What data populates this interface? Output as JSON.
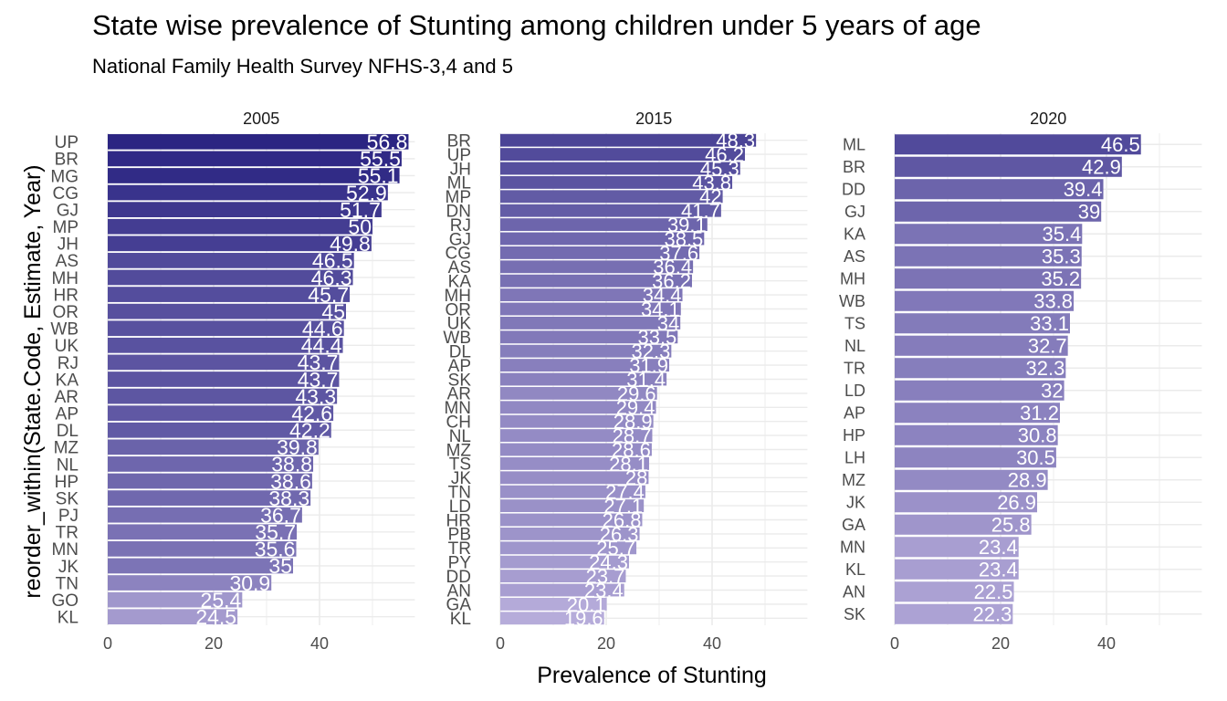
{
  "title": "State wise prevalence of Stunting among children under 5 years of age",
  "subtitle": "National Family Health Survey NFHS-3,4 and 5",
  "colors": {
    "bar_dark": "#2a2482",
    "bar_light": "#b6acda",
    "grid": "#ebebeb",
    "text": "#4d4d4d",
    "value_label": "#ffffff"
  },
  "chart_data": {
    "type": "bar",
    "orientation": "horizontal",
    "faceted": true,
    "xlabel": "Prevalence of Stunting",
    "ylabel": "reorder_within(State.Code, Estimate, Year)",
    "xlim": [
      0,
      58
    ],
    "x_ticks": [
      0,
      20,
      40
    ],
    "grid": true,
    "panels": [
      {
        "label": "2005",
        "categories": [
          "UP",
          "BR",
          "MG",
          "CG",
          "GJ",
          "MP",
          "JH",
          "AS",
          "MH",
          "HR",
          "OR",
          "WB",
          "UK",
          "RJ",
          "KA",
          "AR",
          "AP",
          "DL",
          "MZ",
          "NL",
          "HP",
          "SK",
          "PJ",
          "TR",
          "MN",
          "JK",
          "TN",
          "GO",
          "KL"
        ],
        "values": [
          56.8,
          55.5,
          55.1,
          52.9,
          51.7,
          50,
          49.8,
          46.5,
          46.3,
          45.7,
          45,
          44.6,
          44.4,
          43.7,
          43.7,
          43.3,
          42.6,
          42.2,
          39.8,
          38.8,
          38.6,
          38.3,
          36.7,
          35.7,
          35.6,
          35,
          30.9,
          25.4,
          24.5
        ],
        "value_labels": [
          "56.8",
          "55.5",
          "55.1",
          "52.9",
          "51.7",
          "50",
          "49.8",
          "46.5",
          "46.3",
          "45.7",
          "45",
          "44.6",
          "44.4",
          "43.7",
          "43.7",
          "43.3",
          "42.6",
          "42.2",
          "39.8",
          "38.8",
          "38.6",
          "38.3",
          "36.7",
          "35.7",
          "35.6",
          "35",
          "30.9",
          "25.4",
          "24.5"
        ]
      },
      {
        "label": "2015",
        "categories": [
          "BR",
          "UP",
          "JH",
          "ML",
          "MP",
          "DN",
          "RJ",
          "GJ",
          "CG",
          "AS",
          "KA",
          "MH",
          "OR",
          "UK",
          "WB",
          "DL",
          "AP",
          "SK",
          "AR",
          "MN",
          "CH",
          "NL",
          "MZ",
          "TS",
          "JK",
          "TN",
          "LD",
          "HR",
          "PB",
          "TR",
          "PY",
          "DD",
          "AN",
          "GA",
          "KL"
        ],
        "values": [
          48.3,
          46.2,
          45.3,
          43.8,
          42,
          41.7,
          39.1,
          38.5,
          37.6,
          36.4,
          36.2,
          34.4,
          34.1,
          34,
          33.5,
          32.3,
          31.9,
          31.4,
          29.6,
          29.4,
          28.9,
          28.7,
          28.6,
          28.1,
          28,
          27.4,
          27.1,
          26.8,
          26.3,
          25.7,
          24.3,
          23.7,
          23.4,
          20.1,
          19.6
        ],
        "value_labels": [
          "48.3",
          "46.2",
          "45.3",
          "43.8",
          "42",
          "41.7",
          "39.1",
          "38.5",
          "37.6",
          "36.4",
          "36.2",
          "34.4",
          "34.1",
          "34",
          "33.5",
          "32.3",
          "31.9",
          "31.4",
          "29.6",
          "29.4",
          "28.9",
          "28.7",
          "28.6",
          "28.1",
          "28",
          "27.4",
          "27.1",
          "26.8",
          "26.3",
          "25.7",
          "24.3",
          "23.7",
          "23.4",
          "20.1",
          "19.6"
        ]
      },
      {
        "label": "2020",
        "categories": [
          "ML",
          "BR",
          "DD",
          "GJ",
          "KA",
          "AS",
          "MH",
          "WB",
          "TS",
          "NL",
          "TR",
          "LD",
          "AP",
          "HP",
          "LH",
          "MZ",
          "JK",
          "GA",
          "MN",
          "KL",
          "AN",
          "SK"
        ],
        "values": [
          46.5,
          42.9,
          39.4,
          39,
          35.4,
          35.3,
          35.2,
          33.8,
          33.1,
          32.7,
          32.3,
          32,
          31.2,
          30.8,
          30.5,
          28.9,
          26.9,
          25.8,
          23.4,
          23.4,
          22.5,
          22.3
        ],
        "value_labels": [
          "46.5",
          "42.9",
          "39.4",
          "39",
          "35.4",
          "35.3",
          "35.2",
          "33.8",
          "33.1",
          "32.7",
          "32.3",
          "32",
          "31.2",
          "30.8",
          "30.5",
          "28.9",
          "26.9",
          "25.8",
          "23.4",
          "23.4",
          "22.5",
          "22.3"
        ]
      }
    ]
  }
}
